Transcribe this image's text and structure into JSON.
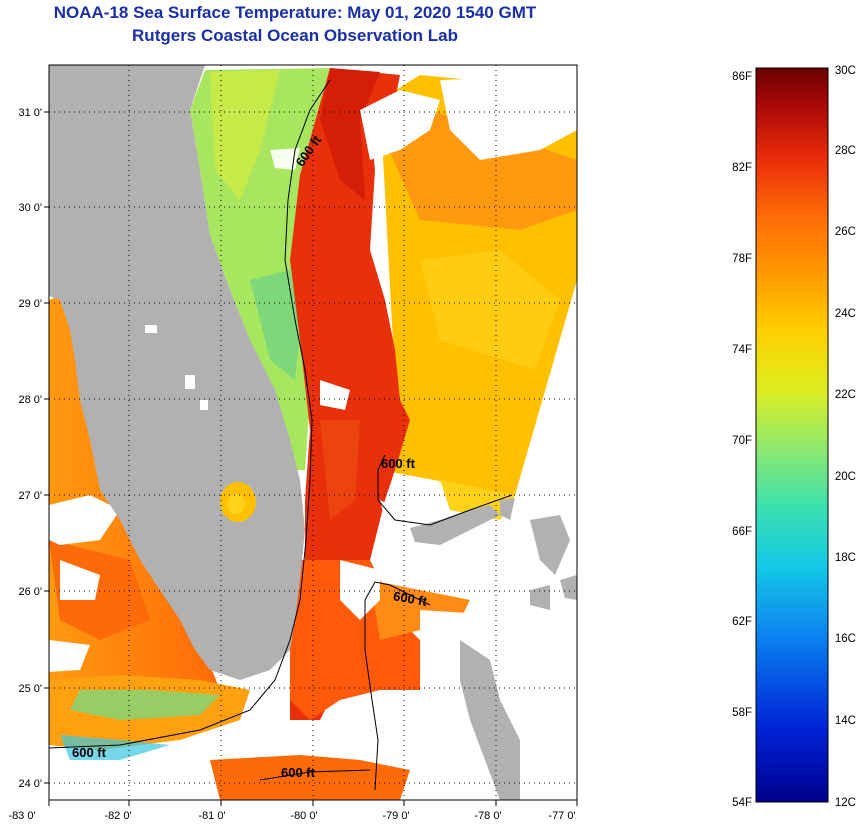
{
  "title": "NOAA-18 Sea Surface Temperature:  May 01, 2020 1540 GMT",
  "subtitle": "Rutgers Coastal Ocean Observation Lab",
  "lat_ticks": [
    "31 0'",
    "30 0'",
    "29 0'",
    "28 0'",
    "27 0'",
    "26 0'",
    "25 0'",
    "24 0'"
  ],
  "lon_ticks": [
    "-83 0'",
    "-82 0'",
    "-81 0'",
    "-80 0'",
    "-79 0'",
    "-78 0'",
    "-77 0'"
  ],
  "contour_labels": [
    "600 ft",
    "600 ft",
    "600 ft",
    "600 ft",
    "600 ft"
  ],
  "colorbar": {
    "fahrenheit": [
      "86F",
      "82F",
      "78F",
      "74F",
      "70F",
      "66F",
      "62F",
      "58F",
      "54F"
    ],
    "celsius": [
      "30C",
      "28C",
      "26C",
      "24C",
      "22C",
      "20C",
      "18C",
      "16C",
      "14C",
      "12C"
    ]
  },
  "colors": {
    "land": "#b1b1b1",
    "title": "#1a2fa8",
    "warm": "#e82a0a",
    "cool": "#9ee35a"
  }
}
